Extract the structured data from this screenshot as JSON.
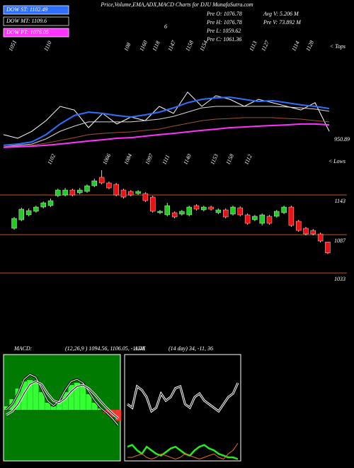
{
  "chart_data": [
    {
      "type": "line",
      "title": "Price,Volume,EMA,ADX,MACD Charts for DJU MunafaSutra.com",
      "info": [
        "Pre O: 1076.78",
        "Pre H: 1076.78",
        "Pre L: 1059.62",
        "Pre C: 1061.36",
        "Avg V: 5.206  M",
        "Pre V: 73.892  M"
      ],
      "note": "6",
      "tops": [
        1051,
        1110,
        108,
        1160,
        1118,
        1147,
        1158,
        1154,
        1113,
        1127,
        1114,
        1128
      ],
      "tops_label": "< Tops",
      "lows": [
        1102,
        1066,
        1084,
        1097,
        1111,
        1140,
        1153,
        1158,
        1112
      ],
      "lows_label": "< Lows",
      "last_label": "950.89",
      "ylim": [
        900,
        1250
      ],
      "series": [
        {
          "color": "#ffffff",
          "values": [
            947,
            935,
            958,
            993,
            1040,
            1028,
            970,
            1017,
            982,
            1005,
            993,
            1040,
            1017,
            1087,
            1040,
            1075,
            1063,
            1040,
            1063,
            1052,
            1040,
            1028,
            1052,
            958
          ]
        },
        {
          "name": "DOW ST: 1102.49",
          "color": "#2f6fff",
          "values": [
            912,
            916,
            923,
            947,
            982,
            1010,
            1021,
            1017,
            1010,
            1005,
            1012,
            1021,
            1035,
            1052,
            1063,
            1068,
            1070,
            1063,
            1056,
            1059,
            1052,
            1045,
            1040,
            1033
          ]
        },
        {
          "name": "DOW MT: 1109.6",
          "color": "#d8d8d8",
          "values": [
            907,
            912,
            916,
            933,
            958,
            975,
            989,
            989,
            989,
            989,
            993,
            998,
            1007,
            1021,
            1035,
            1040,
            1040,
            1040,
            1040,
            1040,
            1038,
            1035,
            1031,
            1024
          ]
        },
        {
          "color": "#a0522d",
          "values": [
            907,
            909,
            912,
            919,
            928,
            937,
            947,
            951,
            954,
            956,
            961,
            965,
            975,
            984,
            993,
            998,
            1000,
            1003,
            1003,
            1003,
            1000,
            998,
            993,
            989
          ]
        },
        {
          "name": "DOW PT: 1076.05",
          "color": "#ff33ff",
          "values": [
            905,
            907,
            909,
            912,
            916,
            921,
            926,
            930,
            935,
            937,
            942,
            947,
            951,
            956,
            961,
            965,
            970,
            972,
            975,
            977,
            979,
            982,
            982,
            979
          ]
        }
      ]
    },
    {
      "type": "candlestick",
      "ylim": [
        1018,
        1203
      ],
      "levels": [
        1143,
        1087,
        1033
      ],
      "up_color": "#22cc22",
      "down_color": "#ee1111",
      "open": [
        1096,
        1108,
        1115,
        1120,
        1126,
        1128,
        1142,
        1143,
        1150,
        1146,
        1148,
        1156,
        1168,
        1160,
        1158,
        1150,
        1148,
        1145,
        1145,
        1140,
        1118,
        1115,
        1118,
        1116,
        1115,
        1128,
        1122,
        1126,
        1118,
        1122,
        1116,
        1125,
        1115,
        1108,
        1103,
        1113,
        1113,
        1118,
        1126,
        1106,
        1096,
        1093,
        1088,
        1076.78
      ],
      "high": [
        1112,
        1125,
        1124,
        1128,
        1134,
        1138,
        1152,
        1153,
        1152,
        1153,
        1158,
        1166,
        1178,
        1162,
        1160,
        1152,
        1150,
        1150,
        1147,
        1142,
        1122,
        1132,
        1120,
        1122,
        1128,
        1130,
        1128,
        1128,
        1124,
        1124,
        1128,
        1127,
        1117,
        1115,
        1117,
        1115,
        1122,
        1128,
        1128,
        1108,
        1098,
        1095,
        1090,
        1076.78
      ],
      "low": [
        1094,
        1106,
        1113,
        1118,
        1124,
        1126,
        1140,
        1141,
        1141,
        1144,
        1146,
        1154,
        1158,
        1151,
        1141,
        1138,
        1141,
        1143,
        1133,
        1118,
        1116,
        1113,
        1110,
        1114,
        1113,
        1121,
        1120,
        1121,
        1116,
        1110,
        1114,
        1113,
        1101,
        1106,
        1100,
        1101,
        1111,
        1116,
        1098,
        1091,
        1086,
        1086,
        1076,
        1059.62
      ],
      "close": [
        1110,
        1123,
        1121,
        1126,
        1132,
        1135,
        1150,
        1150,
        1143,
        1150,
        1156,
        1163,
        1160,
        1153,
        1143,
        1140,
        1143,
        1148,
        1135,
        1120,
        1120,
        1128,
        1112,
        1120,
        1126,
        1123,
        1126,
        1123,
        1122,
        1112,
        1126,
        1115,
        1103,
        1113,
        1115,
        1103,
        1120,
        1126,
        1100,
        1093,
        1088,
        1088,
        1078,
        1061.36
      ]
    },
    {
      "type": "macd",
      "label": "MACD:",
      "params": "(12,26,9 ) 1094.56, 1106.05, -11.48",
      "ylim": [
        -72,
        78
      ],
      "bar_up_color": "#33ff33",
      "bar_down_color": "#ff3333",
      "series": [
        {
          "color": "#ffffff",
          "values": [
            0,
            8,
            23,
            43,
            50,
            46,
            30,
            13,
            6,
            13,
            28,
            40,
            43,
            38,
            26,
            13,
            3,
            -4,
            -12,
            -22
          ]
        },
        {
          "color": "#000000",
          "values": [
            -7,
            -2,
            8,
            23,
            36,
            40,
            36,
            23,
            13,
            10,
            16,
            26,
            33,
            35,
            30,
            22,
            12,
            3,
            -5,
            -12
          ]
        }
      ],
      "histogram": [
        5,
        15,
        30,
        40,
        42,
        38,
        25,
        10,
        5,
        12,
        25,
        35,
        38,
        33,
        22,
        10,
        2,
        -5,
        -10,
        -15
      ]
    },
    {
      "type": "adx",
      "label": "ADX",
      "params": "(14 day) 34, -11, 36",
      "ylim": [
        0,
        60
      ],
      "series": [
        {
          "color": "#ffffff",
          "values": [
            32,
            30,
            42,
            40,
            36,
            28,
            30,
            38,
            34,
            36,
            41,
            42,
            32,
            30,
            36,
            38,
            34,
            32,
            30,
            28,
            32,
            36,
            38,
            44
          ]
        },
        {
          "color": "#22ee22",
          "values": [
            8,
            9,
            6,
            4,
            8,
            6,
            4,
            3,
            5,
            7,
            8,
            6,
            4,
            3,
            6,
            8,
            9,
            7,
            6,
            4,
            3,
            2,
            2,
            1
          ]
        },
        {
          "color": "#e07020",
          "values": [
            2,
            2,
            3,
            4,
            2,
            1,
            2,
            4,
            3,
            2,
            1,
            2,
            4,
            3,
            2,
            1,
            2,
            3,
            4,
            2,
            1,
            4,
            6,
            10
          ]
        }
      ]
    }
  ]
}
